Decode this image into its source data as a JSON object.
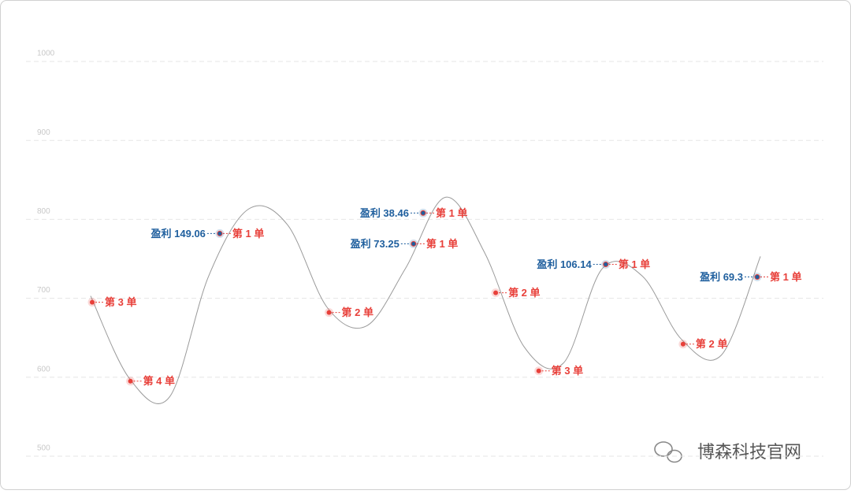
{
  "chart_data": {
    "type": "line",
    "ylim": [
      500,
      1000
    ],
    "yticks": [
      500,
      600,
      700,
      800,
      900,
      1000
    ],
    "xlim": [
      0,
      1000
    ],
    "grid": true,
    "series": [
      {
        "color": "#9a9a9a",
        "x": [
          81,
          130,
          180,
          229,
          279,
          328,
          378,
          427,
          476,
          526,
          575,
          625,
          674,
          723,
          773,
          822,
          872,
          921
        ],
        "values": [
          703,
          598,
          575,
          728,
          813,
          793,
          688,
          665,
          738,
          828,
          758,
          638,
          618,
          738,
          728,
          648,
          628,
          753
        ]
      }
    ],
    "markers": [
      {
        "x": 83,
        "value": 695,
        "label": "第 3 单",
        "color": "#e8403a"
      },
      {
        "x": 131,
        "value": 595,
        "label": "第 4 单",
        "color": "#e8403a"
      },
      {
        "x": 243,
        "value": 782,
        "label": "第 1 单",
        "profit": "盈利 149.06",
        "color": "#1f5f9e"
      },
      {
        "x": 380,
        "value": 682,
        "label": "第 2 单",
        "color": "#e8403a"
      },
      {
        "x": 498,
        "value": 808,
        "label": "第 1 单",
        "profit": "盈利 38.46",
        "color": "#1f5f9e"
      },
      {
        "x": 486,
        "value": 769,
        "label": "第 1 单",
        "profit": "盈利 73.25",
        "color": "#1f5f9e"
      },
      {
        "x": 589,
        "value": 707,
        "label": "第 2 单",
        "color": "#e8403a"
      },
      {
        "x": 643,
        "value": 608,
        "label": "第 3 单",
        "color": "#e8403a"
      },
      {
        "x": 727,
        "value": 743,
        "label": "第 1 单",
        "profit": "盈利 106.14",
        "color": "#1f5f9e"
      },
      {
        "x": 824,
        "value": 642,
        "label": "第 2 单",
        "color": "#e8403a"
      },
      {
        "x": 917,
        "value": 727,
        "label": "第 1 单",
        "profit": "盈利 69.3",
        "color": "#1f5f9e"
      }
    ],
    "watermark": "博森科技官网"
  }
}
